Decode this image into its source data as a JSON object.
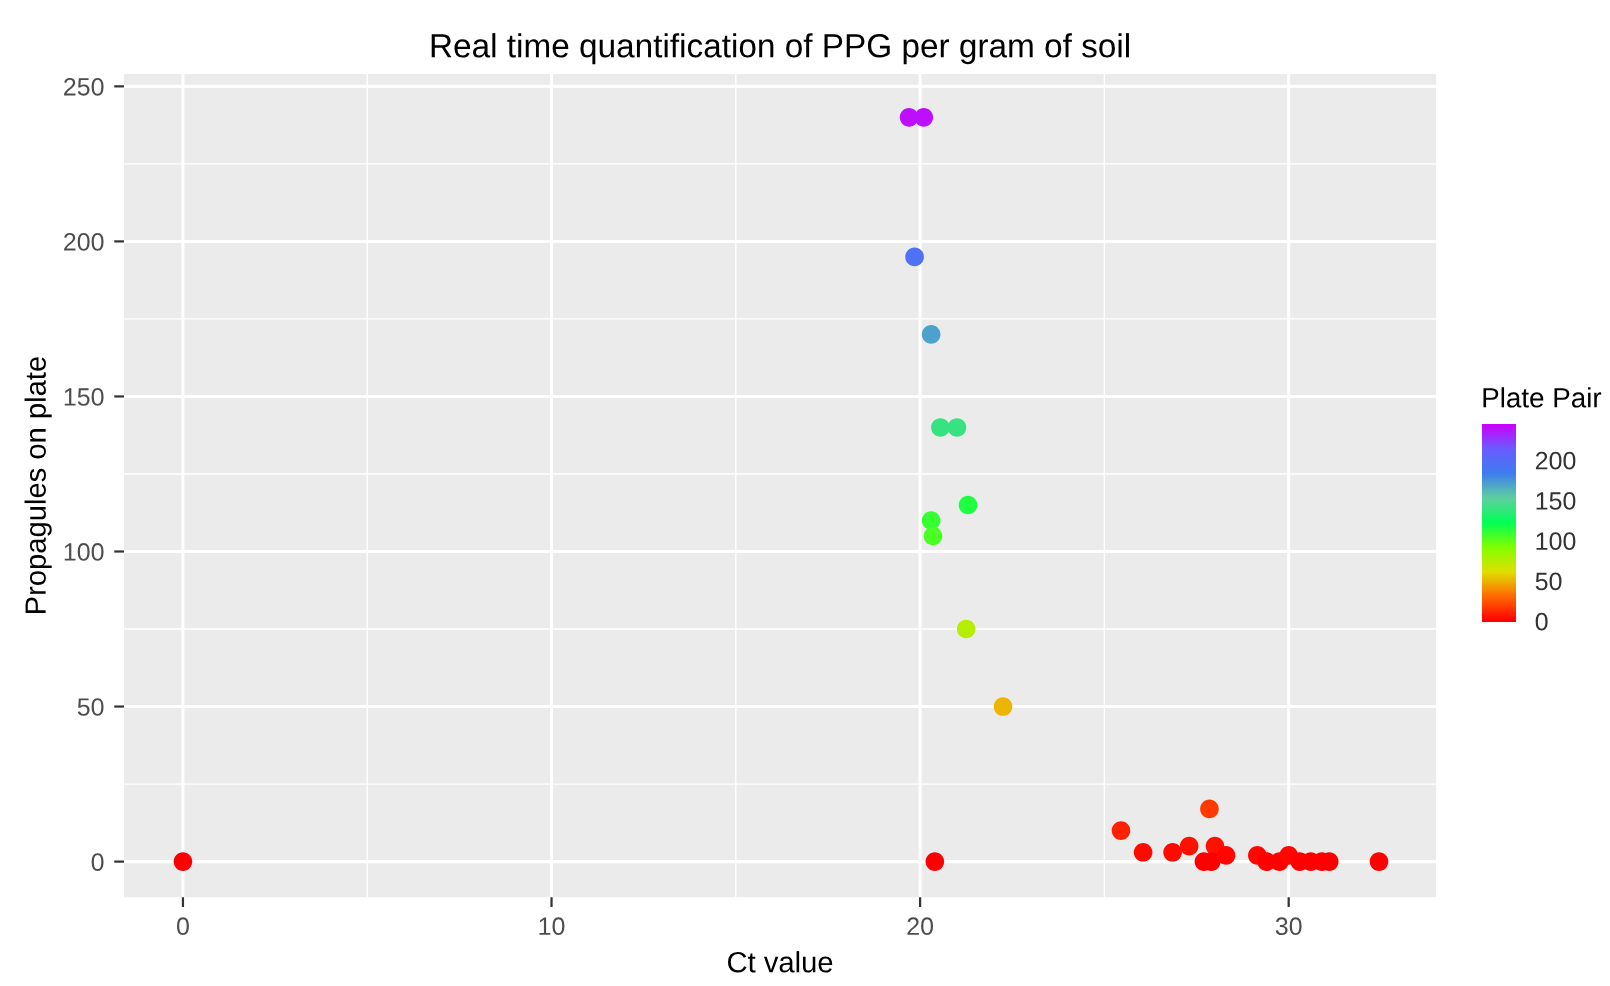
{
  "chart_data": {
    "type": "scatter",
    "title": "Real time quantification of PPG per gram of soil",
    "xlabel": "Ct value",
    "ylabel": "Propagules on plate",
    "clabel": "Plate Pair",
    "x": [
      19.7,
      20.1,
      19.85,
      20.3,
      20.55,
      21.0,
      21.3,
      20.3,
      20.35,
      21.25,
      22.25,
      0,
      20.4,
      25.45,
      26.05,
      26.85,
      27.3,
      27.85,
      28.0,
      27.7,
      27.9,
      28.3,
      29.15,
      29.4,
      29.75,
      30.0,
      30.3,
      30.6,
      30.9,
      31.1,
      32.45
    ],
    "values": [
      240,
      240,
      195,
      170,
      140,
      140,
      115,
      110,
      105,
      75,
      50,
      0,
      0,
      10,
      3,
      3,
      5,
      17,
      5,
      0,
      0,
      2,
      2,
      0,
      0,
      2,
      0,
      0,
      0,
      0,
      0
    ],
    "cvalues": [
      240,
      240,
      195,
      170,
      140,
      140,
      115,
      110,
      105,
      75,
      50,
      0,
      0,
      10,
      3,
      3,
      5,
      17,
      5,
      0,
      0,
      2,
      2,
      0,
      0,
      2,
      0,
      0,
      0,
      0,
      0
    ],
    "clim": [
      0,
      245
    ],
    "cticks": [
      0,
      50,
      100,
      150,
      200
    ],
    "xlim": [
      -1.6,
      34
    ],
    "ylim": [
      -11.5,
      254
    ],
    "xticks": [
      0,
      10,
      20,
      30
    ],
    "yticks": [
      0,
      50,
      100,
      150,
      200,
      250
    ],
    "grid": true,
    "marker": "circle"
  }
}
